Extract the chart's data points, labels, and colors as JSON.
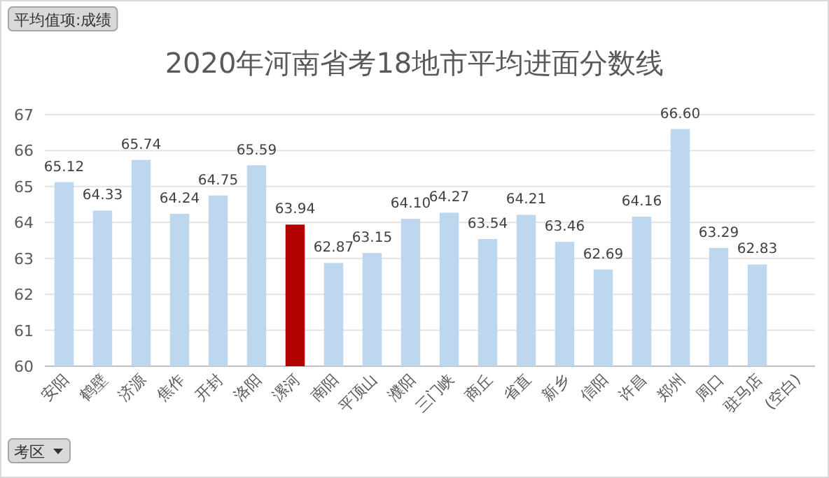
{
  "chart_data": {
    "type": "bar",
    "title": "2020年河南省考18地市平均进面分数线",
    "categories": [
      "安阳",
      "鹤壁",
      "济源",
      "焦作",
      "开封",
      "洛阳",
      "漯河",
      "南阳",
      "平顶山",
      "濮阳",
      "三门峡",
      "商丘",
      "省直",
      "新乡",
      "信阳",
      "许昌",
      "郑州",
      "周口",
      "驻马店",
      "(空白)"
    ],
    "values": [
      65.12,
      64.33,
      65.74,
      64.24,
      64.75,
      65.59,
      63.94,
      62.87,
      63.15,
      64.1,
      64.27,
      63.54,
      64.21,
      63.46,
      62.69,
      64.16,
      66.6,
      63.29,
      62.83,
      null
    ],
    "value_labels": [
      "65.12",
      "64.33",
      "65.74",
      "64.24",
      "64.75",
      "65.59",
      "63.94",
      "62.87",
      "63.15",
      "64.10",
      "64.27",
      "63.54",
      "64.21",
      "63.46",
      "62.69",
      "64.16",
      "66.60",
      "63.29",
      "62.83",
      null
    ],
    "colors": [
      "#bdd7ee",
      "#bdd7ee",
      "#bdd7ee",
      "#bdd7ee",
      "#bdd7ee",
      "#bdd7ee",
      "#b00000",
      "#bdd7ee",
      "#bdd7ee",
      "#bdd7ee",
      "#bdd7ee",
      "#bdd7ee",
      "#bdd7ee",
      "#bdd7ee",
      "#bdd7ee",
      "#bdd7ee",
      "#bdd7ee",
      "#bdd7ee",
      "#bdd7ee",
      null
    ],
    "ylim": [
      60,
      67
    ],
    "yticks": [
      60,
      61,
      62,
      63,
      64,
      65,
      66,
      67
    ],
    "grid": "y",
    "annotations": [
      "平均值项:成绩",
      "考区"
    ]
  }
}
